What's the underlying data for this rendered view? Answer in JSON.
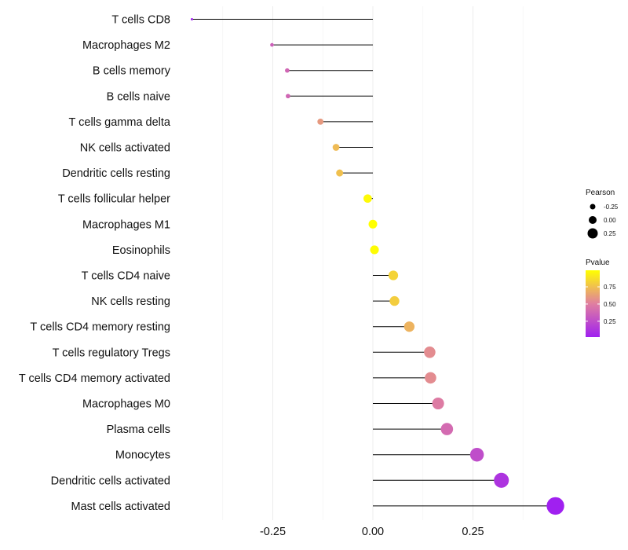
{
  "chart_data": {
    "type": "lollipop",
    "title": "",
    "xlabel": "",
    "ylabel": "",
    "xlim": [
      -0.45,
      0.46
    ],
    "xticks": [
      -0.25,
      0.0,
      0.25
    ],
    "xtick_labels": [
      "-0.25",
      "0.00",
      "0.25"
    ],
    "grid": true,
    "categories": [
      "T cells CD8",
      "Macrophages M2",
      "B cells memory",
      "B cells naive",
      "T cells gamma delta",
      "NK cells activated",
      "Dendritic cells resting",
      "T cells follicular helper",
      "Macrophages M1",
      "Eosinophils",
      "T cells CD4 naive",
      "NK cells resting",
      "T cells CD4 memory resting",
      "T cells regulatory  Tregs ",
      "T cells CD4 memory activated",
      "Macrophages M0",
      "Plasma cells",
      "Monocytes",
      "Dendritic cells activated",
      "Mast cells activated"
    ],
    "pearson": [
      -0.452,
      -0.252,
      -0.214,
      -0.212,
      -0.131,
      -0.092,
      -0.083,
      -0.013,
      0.0,
      0.004,
      0.051,
      0.054,
      0.091,
      0.142,
      0.144,
      0.163,
      0.185,
      0.26,
      0.321,
      0.456
    ],
    "pvalue": [
      0.02,
      0.35,
      0.38,
      0.38,
      0.6,
      0.73,
      0.75,
      0.97,
      0.99,
      0.98,
      0.82,
      0.8,
      0.7,
      0.55,
      0.55,
      0.48,
      0.4,
      0.25,
      0.12,
      0.02
    ],
    "size_legend": {
      "title": "Pearson",
      "labels": [
        "-0.25",
        "0.00",
        "0.25"
      ],
      "values": [
        -0.25,
        0.0,
        0.25
      ]
    },
    "color_legend": {
      "title": "Pvalue",
      "labels": [
        "0.75",
        "0.50",
        "0.25"
      ],
      "values": [
        0.75,
        0.5,
        0.25
      ],
      "range": [
        0.02,
        0.99
      ],
      "low_color": "#a020f0",
      "mid_color": "#e07fa0",
      "high_color": "#ffff00"
    },
    "legend_position": "right"
  }
}
